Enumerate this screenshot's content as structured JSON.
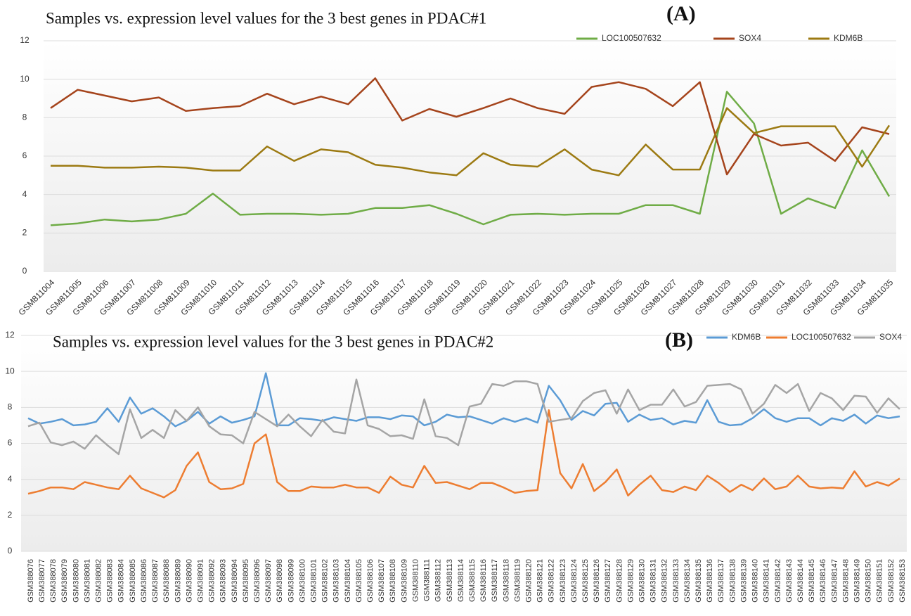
{
  "chart_data": [
    {
      "type": "line",
      "title": "Samples vs. expression level values for the 3 best genes in PDAC#1",
      "panel_label": "(A)",
      "categories": [
        "GSM811004",
        "GSM811005",
        "GSM811006",
        "GSM811007",
        "GSM811008",
        "GSM811009",
        "GSM811010",
        "GSM811011",
        "GSM811012",
        "GSM811013",
        "GSM811014",
        "GSM811015",
        "GSM811016",
        "GSM811017",
        "GSM811018",
        "GSM811019",
        "GSM811020",
        "GSM811021",
        "GSM811022",
        "GSM811023",
        "GSM811024",
        "GSM811025",
        "GSM811026",
        "GSM811027",
        "GSM811028",
        "GSM811029",
        "GSM811030",
        "GSM811031",
        "GSM811032",
        "GSM811033",
        "GSM811034",
        "GSM811035"
      ],
      "series": [
        {
          "name": "LOC100507632",
          "color": "#6fac46",
          "values": [
            2.4,
            2.5,
            2.7,
            2.6,
            2.7,
            3.0,
            4.05,
            2.95,
            3.0,
            3.0,
            2.95,
            3.0,
            3.3,
            3.3,
            3.45,
            3.0,
            2.45,
            2.95,
            3.0,
            2.95,
            3.0,
            3.0,
            3.45,
            3.45,
            3.0,
            9.35,
            7.7,
            3.0,
            3.8,
            3.3,
            6.3,
            3.9
          ]
        },
        {
          "name": "SOX4",
          "color": "#a5441c",
          "values": [
            8.5,
            9.45,
            9.15,
            8.85,
            9.05,
            8.35,
            8.5,
            8.6,
            9.25,
            8.7,
            9.1,
            8.7,
            10.05,
            7.85,
            8.45,
            8.05,
            8.5,
            9.0,
            8.5,
            8.2,
            9.6,
            9.85,
            9.5,
            8.6,
            9.85,
            5.05,
            7.15,
            6.55,
            6.7,
            5.75,
            7.5,
            7.15
          ]
        },
        {
          "name": "KDM6B",
          "color": "#9c7a12",
          "values": [
            5.5,
            5.5,
            5.4,
            5.4,
            5.45,
            5.4,
            5.25,
            5.25,
            6.5,
            5.75,
            6.35,
            6.2,
            5.55,
            5.4,
            5.15,
            5.0,
            6.15,
            5.55,
            5.45,
            6.35,
            5.3,
            5.0,
            6.6,
            5.3,
            5.3,
            8.5,
            7.2,
            7.55,
            7.55,
            7.55,
            5.45,
            7.6
          ]
        }
      ],
      "ylim": [
        0,
        12
      ],
      "yticks": [
        0,
        2,
        4,
        6,
        8,
        10,
        12
      ],
      "grid": true,
      "legend": "top-right"
    },
    {
      "type": "line",
      "title": "Samples vs. expression level values for the 3 best genes in PDAC#2",
      "panel_label": "(B)",
      "categories": [
        "GSM388076",
        "GSM388077",
        "GSM388078",
        "GSM388079",
        "GSM388080",
        "GSM388081",
        "GSM388082",
        "GSM388083",
        "GSM388084",
        "GSM388085",
        "GSM388086",
        "GSM388087",
        "GSM388088",
        "GSM388089",
        "GSM388090",
        "GSM388091",
        "GSM388092",
        "GSM388093",
        "GSM388094",
        "GSM388095",
        "GSM388096",
        "GSM388097",
        "GSM388098",
        "GSM388099",
        "GSM388100",
        "GSM388101",
        "GSM388102",
        "GSM388103",
        "GSM388104",
        "GSM388105",
        "GSM388106",
        "GSM388107",
        "GSM388108",
        "GSM388109",
        "GSM388110",
        "GSM388111",
        "GSM388112",
        "GSM388113",
        "GSM388114",
        "GSM388115",
        "GSM388116",
        "GSM388117",
        "GSM388118",
        "GSM388119",
        "GSM388120",
        "GSM388121",
        "GSM388122",
        "GSM388123",
        "GSM388124",
        "GSM388125",
        "GSM388126",
        "GSM388127",
        "GSM388128",
        "GSM388129",
        "GSM388130",
        "GSM388131",
        "GSM388132",
        "GSM388133",
        "GSM388134",
        "GSM388135",
        "GSM388136",
        "GSM388137",
        "GSM388138",
        "GSM388139",
        "GSM388140",
        "GSM388141",
        "GSM388142",
        "GSM388143",
        "GSM388144",
        "GSM388145",
        "GSM388146",
        "GSM388147",
        "GSM388148",
        "GSM388149",
        "GSM388150",
        "GSM388151",
        "GSM388152",
        "GSM388153"
      ],
      "series": [
        {
          "name": "KDM6B",
          "color": "#5b9bd5",
          "values": [
            7.4,
            7.1,
            7.2,
            7.35,
            7.0,
            7.05,
            7.2,
            7.95,
            7.2,
            8.55,
            7.65,
            7.95,
            7.5,
            6.95,
            7.25,
            7.75,
            7.1,
            7.5,
            7.15,
            7.3,
            7.5,
            9.9,
            7.0,
            7.0,
            7.4,
            7.35,
            7.25,
            7.45,
            7.35,
            7.25,
            7.45,
            7.45,
            7.35,
            7.55,
            7.5,
            7.0,
            7.2,
            7.6,
            7.45,
            7.5,
            7.3,
            7.1,
            7.4,
            7.2,
            7.4,
            7.15,
            9.2,
            8.4,
            7.3,
            7.8,
            7.55,
            8.2,
            8.25,
            7.2,
            7.6,
            7.3,
            7.4,
            7.05,
            7.25,
            7.15,
            8.4,
            7.2,
            7.0,
            7.05,
            7.4,
            7.9,
            7.4,
            7.2,
            7.4,
            7.4,
            7.0,
            7.4,
            7.25,
            7.6,
            7.1,
            7.55,
            7.4,
            7.5
          ]
        },
        {
          "name": "LOC100507632",
          "color": "#ed7d31",
          "values": [
            3.2,
            3.35,
            3.55,
            3.55,
            3.45,
            3.85,
            3.7,
            3.55,
            3.45,
            4.2,
            3.5,
            3.25,
            3.0,
            3.4,
            4.75,
            5.5,
            3.85,
            3.45,
            3.5,
            3.75,
            6.0,
            6.5,
            3.85,
            3.35,
            3.35,
            3.6,
            3.55,
            3.55,
            3.7,
            3.55,
            3.55,
            3.25,
            4.15,
            3.7,
            3.55,
            4.75,
            3.8,
            3.85,
            3.65,
            3.45,
            3.8,
            3.8,
            3.55,
            3.25,
            3.35,
            3.4,
            7.85,
            4.35,
            3.5,
            4.85,
            3.35,
            3.85,
            4.55,
            3.1,
            3.7,
            4.2,
            3.4,
            3.3,
            3.6,
            3.4,
            4.2,
            3.8,
            3.3,
            3.7,
            3.4,
            4.05,
            3.45,
            3.6,
            4.2,
            3.6,
            3.5,
            3.55,
            3.5,
            4.45,
            3.6,
            3.85,
            3.65,
            4.05
          ]
        },
        {
          "name": "SOX4",
          "color": "#a5a5a5",
          "values": [
            6.95,
            7.15,
            6.05,
            5.9,
            6.1,
            5.7,
            6.45,
            5.9,
            5.4,
            7.9,
            6.3,
            6.75,
            6.3,
            7.85,
            7.25,
            8.0,
            6.95,
            6.5,
            6.45,
            6.0,
            7.75,
            7.35,
            6.95,
            7.6,
            6.95,
            6.4,
            7.3,
            6.65,
            6.55,
            9.55,
            7.0,
            6.8,
            6.4,
            6.45,
            6.25,
            8.45,
            6.4,
            6.3,
            5.9,
            8.05,
            8.2,
            9.3,
            9.2,
            9.45,
            9.45,
            9.3,
            7.2,
            7.3,
            7.4,
            8.35,
            8.8,
            8.95,
            7.65,
            9.0,
            7.85,
            8.15,
            8.15,
            9.0,
            8.05,
            8.3,
            9.2,
            9.25,
            9.3,
            9.0,
            7.65,
            8.2,
            9.25,
            8.8,
            9.3,
            7.8,
            8.8,
            8.5,
            7.85,
            8.65,
            8.6,
            7.7,
            8.5,
            7.9
          ]
        }
      ],
      "ylim": [
        0,
        12
      ],
      "yticks": [
        0,
        2,
        4,
        6,
        8,
        10,
        12
      ],
      "grid": true,
      "legend": "top-right"
    }
  ]
}
